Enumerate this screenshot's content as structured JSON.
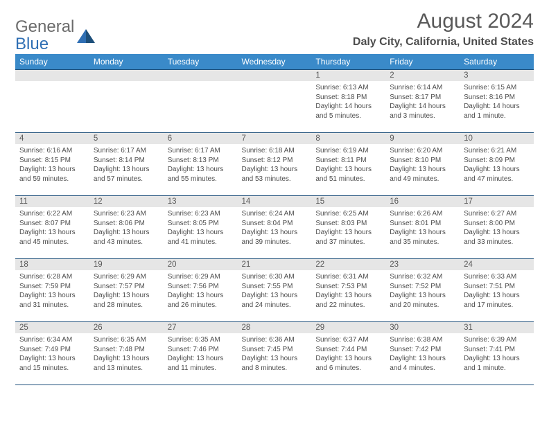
{
  "brand": {
    "word1": "General",
    "word2": "Blue"
  },
  "header": {
    "title": "August 2024",
    "location": "Daly City, California, United States"
  },
  "styling": {
    "header_bg": "#3a8ac9",
    "header_text": "#ffffff",
    "daynum_bg": "#e6e6e6",
    "rule_color": "#1d4f7a",
    "body_text": "#4d4d4d",
    "title_color": "#595959",
    "brand_accent": "#2f6fb4",
    "page_bg": "#ffffff",
    "body_fontsize": 10,
    "daynum_fontsize": 11.5,
    "header_fontsize": 12,
    "title_fontsize": 30,
    "location_fontsize": 16
  },
  "columns": [
    "Sunday",
    "Monday",
    "Tuesday",
    "Wednesday",
    "Thursday",
    "Friday",
    "Saturday"
  ],
  "weeks": [
    [
      null,
      null,
      null,
      null,
      {
        "n": "1",
        "sr": "6:13 AM",
        "ss": "8:18 PM",
        "dl": "14 hours and 5 minutes."
      },
      {
        "n": "2",
        "sr": "6:14 AM",
        "ss": "8:17 PM",
        "dl": "14 hours and 3 minutes."
      },
      {
        "n": "3",
        "sr": "6:15 AM",
        "ss": "8:16 PM",
        "dl": "14 hours and 1 minute."
      }
    ],
    [
      {
        "n": "4",
        "sr": "6:16 AM",
        "ss": "8:15 PM",
        "dl": "13 hours and 59 minutes."
      },
      {
        "n": "5",
        "sr": "6:17 AM",
        "ss": "8:14 PM",
        "dl": "13 hours and 57 minutes."
      },
      {
        "n": "6",
        "sr": "6:17 AM",
        "ss": "8:13 PM",
        "dl": "13 hours and 55 minutes."
      },
      {
        "n": "7",
        "sr": "6:18 AM",
        "ss": "8:12 PM",
        "dl": "13 hours and 53 minutes."
      },
      {
        "n": "8",
        "sr": "6:19 AM",
        "ss": "8:11 PM",
        "dl": "13 hours and 51 minutes."
      },
      {
        "n": "9",
        "sr": "6:20 AM",
        "ss": "8:10 PM",
        "dl": "13 hours and 49 minutes."
      },
      {
        "n": "10",
        "sr": "6:21 AM",
        "ss": "8:09 PM",
        "dl": "13 hours and 47 minutes."
      }
    ],
    [
      {
        "n": "11",
        "sr": "6:22 AM",
        "ss": "8:07 PM",
        "dl": "13 hours and 45 minutes."
      },
      {
        "n": "12",
        "sr": "6:23 AM",
        "ss": "8:06 PM",
        "dl": "13 hours and 43 minutes."
      },
      {
        "n": "13",
        "sr": "6:23 AM",
        "ss": "8:05 PM",
        "dl": "13 hours and 41 minutes."
      },
      {
        "n": "14",
        "sr": "6:24 AM",
        "ss": "8:04 PM",
        "dl": "13 hours and 39 minutes."
      },
      {
        "n": "15",
        "sr": "6:25 AM",
        "ss": "8:03 PM",
        "dl": "13 hours and 37 minutes."
      },
      {
        "n": "16",
        "sr": "6:26 AM",
        "ss": "8:01 PM",
        "dl": "13 hours and 35 minutes."
      },
      {
        "n": "17",
        "sr": "6:27 AM",
        "ss": "8:00 PM",
        "dl": "13 hours and 33 minutes."
      }
    ],
    [
      {
        "n": "18",
        "sr": "6:28 AM",
        "ss": "7:59 PM",
        "dl": "13 hours and 31 minutes."
      },
      {
        "n": "19",
        "sr": "6:29 AM",
        "ss": "7:57 PM",
        "dl": "13 hours and 28 minutes."
      },
      {
        "n": "20",
        "sr": "6:29 AM",
        "ss": "7:56 PM",
        "dl": "13 hours and 26 minutes."
      },
      {
        "n": "21",
        "sr": "6:30 AM",
        "ss": "7:55 PM",
        "dl": "13 hours and 24 minutes."
      },
      {
        "n": "22",
        "sr": "6:31 AM",
        "ss": "7:53 PM",
        "dl": "13 hours and 22 minutes."
      },
      {
        "n": "23",
        "sr": "6:32 AM",
        "ss": "7:52 PM",
        "dl": "13 hours and 20 minutes."
      },
      {
        "n": "24",
        "sr": "6:33 AM",
        "ss": "7:51 PM",
        "dl": "13 hours and 17 minutes."
      }
    ],
    [
      {
        "n": "25",
        "sr": "6:34 AM",
        "ss": "7:49 PM",
        "dl": "13 hours and 15 minutes."
      },
      {
        "n": "26",
        "sr": "6:35 AM",
        "ss": "7:48 PM",
        "dl": "13 hours and 13 minutes."
      },
      {
        "n": "27",
        "sr": "6:35 AM",
        "ss": "7:46 PM",
        "dl": "13 hours and 11 minutes."
      },
      {
        "n": "28",
        "sr": "6:36 AM",
        "ss": "7:45 PM",
        "dl": "13 hours and 8 minutes."
      },
      {
        "n": "29",
        "sr": "6:37 AM",
        "ss": "7:44 PM",
        "dl": "13 hours and 6 minutes."
      },
      {
        "n": "30",
        "sr": "6:38 AM",
        "ss": "7:42 PM",
        "dl": "13 hours and 4 minutes."
      },
      {
        "n": "31",
        "sr": "6:39 AM",
        "ss": "7:41 PM",
        "dl": "13 hours and 1 minute."
      }
    ]
  ],
  "labels": {
    "sunrise": "Sunrise: ",
    "sunset": "Sunset: ",
    "daylight": "Daylight: "
  }
}
